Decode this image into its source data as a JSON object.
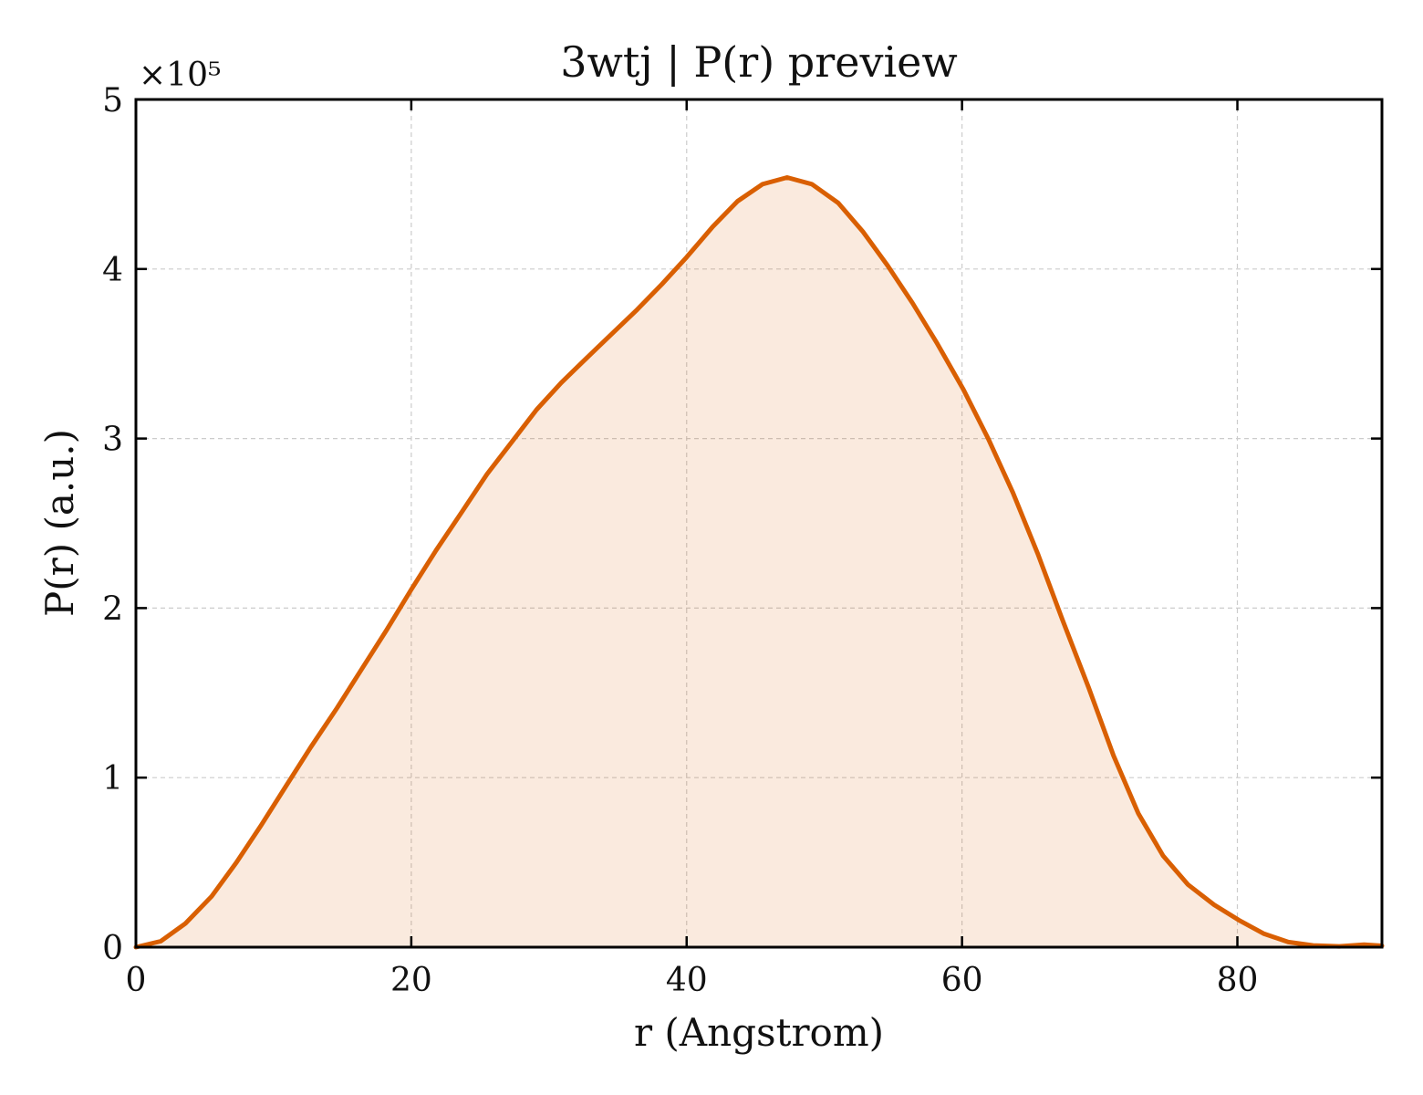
{
  "chart_data": {
    "type": "area",
    "title": "3wtj | P(r) preview",
    "xlabel": "r (Angstrom)",
    "ylabel": "P(r) (a.u.)",
    "y_multiplier_label": "×10⁵",
    "xlim": [
      0,
      90.5
    ],
    "ylim": [
      0,
      500000
    ],
    "x_ticks": [
      0,
      20,
      40,
      60,
      80
    ],
    "y_ticks": [
      0,
      100000,
      200000,
      300000,
      400000,
      500000
    ],
    "y_tick_labels": [
      "0",
      "1",
      "2",
      "3",
      "4",
      "5"
    ],
    "grid": true,
    "grid_style": "dashed",
    "series": [
      {
        "color": "#d95f02",
        "fill_color": "#d95f02",
        "x": [
          0.0,
          1.8,
          3.6,
          5.5,
          7.3,
          9.1,
          10.9,
          12.7,
          14.6,
          16.4,
          18.2,
          20.0,
          21.8,
          23.7,
          25.5,
          27.3,
          29.1,
          30.9,
          32.8,
          34.6,
          36.4,
          38.2,
          40.0,
          41.9,
          43.7,
          45.5,
          47.3,
          49.1,
          51.0,
          52.8,
          54.6,
          56.4,
          58.2,
          60.1,
          61.9,
          63.7,
          65.5,
          67.3,
          69.2,
          71.0,
          72.8,
          74.6,
          76.4,
          78.3,
          80.1,
          81.9,
          83.7,
          85.5,
          87.4,
          89.2,
          90.5
        ],
        "y": [
          0,
          3500,
          14000,
          30000,
          50000,
          72000,
          95000,
          118000,
          141000,
          164000,
          187000,
          211000,
          234000,
          257000,
          279000,
          298000,
          317000,
          333000,
          348000,
          362000,
          376000,
          391000,
          407000,
          425000,
          440000,
          450000,
          454000,
          450000,
          439000,
          422000,
          402000,
          380000,
          356000,
          329000,
          300000,
          268000,
          232000,
          193000,
          153000,
          113000,
          79000,
          54000,
          37000,
          25000,
          16000,
          8000,
          3000,
          1000,
          500,
          1500,
          800
        ]
      }
    ]
  }
}
